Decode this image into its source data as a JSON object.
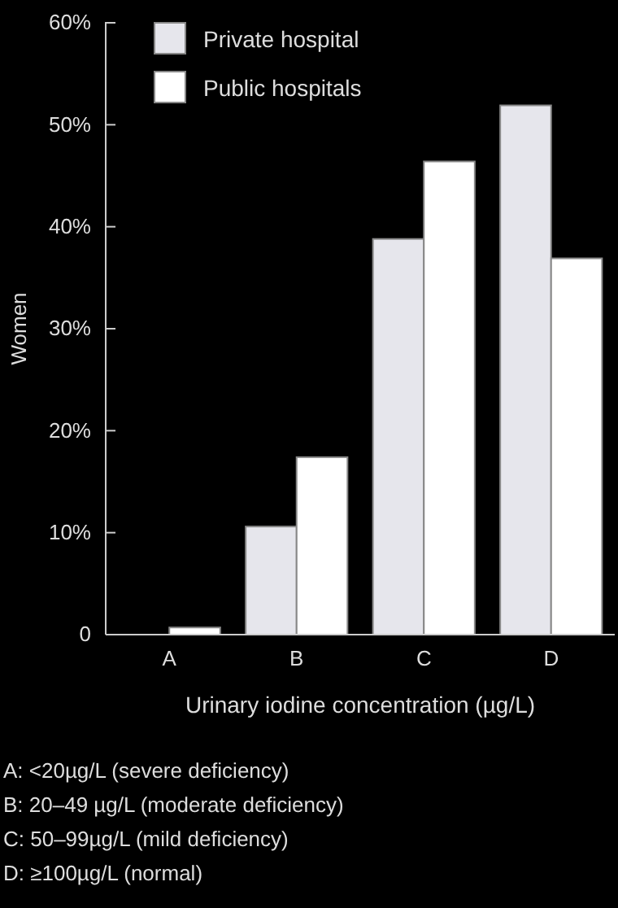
{
  "chart_data": {
    "type": "bar",
    "xlabel": "Urinary iodine concentration (µg/L)",
    "ylabel": "Women",
    "categories": [
      "A",
      "B",
      "C",
      "D"
    ],
    "series": [
      {
        "name": "Private hospital",
        "color": "#e6e6ec",
        "values": [
          0,
          10.6,
          38.8,
          51.9
        ]
      },
      {
        "name": "Public hospitals",
        "color": "#ffffff",
        "values": [
          0.7,
          17.4,
          46.4,
          36.9
        ]
      }
    ],
    "ylim": [
      0,
      60
    ],
    "yticks": [
      0,
      {
        "value": 10,
        "label": "10%"
      },
      {
        "value": 20,
        "label": "20%"
      },
      {
        "value": 30,
        "label": "30%"
      },
      {
        "value": 40,
        "label": "40%"
      },
      {
        "value": 50,
        "label": "50%"
      },
      {
        "value": 60,
        "label": "60%"
      }
    ],
    "grid": false,
    "legend": "top left",
    "annotations": [
      "A: <20µg/L (severe deficiency)",
      "B: 20–49 µg/L (moderate deficiency)",
      "C: 50–99µg/L (mild deficiency)",
      "D: ≥100µg/L (normal)"
    ]
  }
}
